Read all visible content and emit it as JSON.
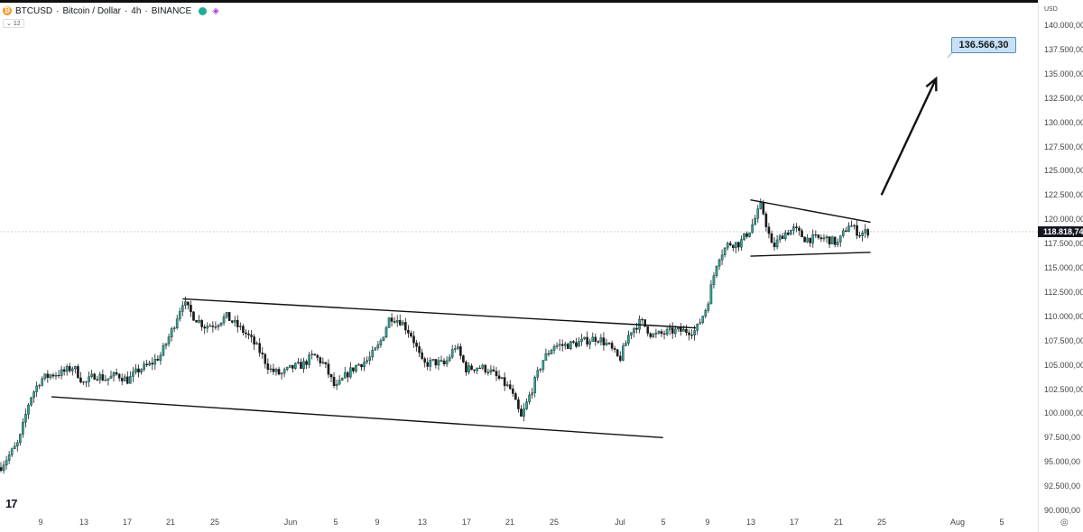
{
  "header": {
    "symbol": "BTCUSD",
    "title": "Bitcoin / Dollar",
    "interval": "4h",
    "exchange": "BINANCE",
    "separator": "·",
    "interval_badge": "12"
  },
  "price_axis": {
    "currency": "USD",
    "ticks": [
      "140.000,00",
      "137.500,00",
      "135.000,00",
      "132.500,00",
      "130.000,00",
      "127.500,00",
      "125.000,00",
      "122.500,00",
      "120.000,00",
      "117.500,00",
      "115.000,00",
      "112.500,00",
      "110.000,00",
      "107.500,00",
      "105.000,00",
      "102.500,00",
      "100.000,00",
      "97.500,00",
      "95.000,00",
      "92.500,00",
      "90.000,00"
    ],
    "last_price": "118.818,74"
  },
  "date_axis": {
    "ticks": [
      "9",
      "13",
      "17",
      "21",
      "25",
      "Jun",
      "5",
      "9",
      "13",
      "17",
      "21",
      "25",
      "Jul",
      "5",
      "9",
      "13",
      "17",
      "21",
      "25",
      "Aug",
      "5"
    ]
  },
  "annotation": {
    "target_label": "136.566,30"
  },
  "logo": "17",
  "icons": {
    "coin": "bitcoin-icon",
    "add": "add-compare-icon",
    "settings": "settings-icon"
  },
  "colors": {
    "up": "#26a69a",
    "candle": "#1a1a1a",
    "grid_line": "#9aa0a8",
    "target_bg": "#c6e0f5"
  },
  "chart_data": {
    "type": "candlestick",
    "symbol": "BTCUSD",
    "timeframe": "4h",
    "y_range": [
      90000,
      140000
    ],
    "last_price": 118818.74,
    "price_path": [
      [
        "2025-05-05",
        94000
      ],
      [
        "2025-05-06",
        95500
      ],
      [
        "2025-05-07",
        97000
      ],
      [
        "2025-05-08",
        101500
      ],
      [
        "2025-05-09",
        103500
      ],
      [
        "2025-05-10",
        104000
      ],
      [
        "2025-05-11",
        104200
      ],
      [
        "2025-05-12",
        104800
      ],
      [
        "2025-05-13",
        103000
      ],
      [
        "2025-05-14",
        104000
      ],
      [
        "2025-05-15",
        103500
      ],
      [
        "2025-05-16",
        104000
      ],
      [
        "2025-05-17",
        103400
      ],
      [
        "2025-05-18",
        104500
      ],
      [
        "2025-05-19",
        105000
      ],
      [
        "2025-05-20",
        106000
      ],
      [
        "2025-05-21",
        108500
      ],
      [
        "2025-05-22",
        111500
      ],
      [
        "2025-05-23",
        110000
      ],
      [
        "2025-05-24",
        109000
      ],
      [
        "2025-05-25",
        109200
      ],
      [
        "2025-05-26",
        110000
      ],
      [
        "2025-05-27",
        109000
      ],
      [
        "2025-05-28",
        108000
      ],
      [
        "2025-05-29",
        106500
      ],
      [
        "2025-05-30",
        104500
      ],
      [
        "2025-05-31",
        104000
      ],
      [
        "2025-06-01",
        104700
      ],
      [
        "2025-06-02",
        105000
      ],
      [
        "2025-06-03",
        106000
      ],
      [
        "2025-06-04",
        105000
      ],
      [
        "2025-06-05",
        102500
      ],
      [
        "2025-06-06",
        104000
      ],
      [
        "2025-06-07",
        105000
      ],
      [
        "2025-06-08",
        105500
      ],
      [
        "2025-06-09",
        107000
      ],
      [
        "2025-06-10",
        110000
      ],
      [
        "2025-06-11",
        109500
      ],
      [
        "2025-06-12",
        108000
      ],
      [
        "2025-06-13",
        105000
      ],
      [
        "2025-06-14",
        105300
      ],
      [
        "2025-06-15",
        105000
      ],
      [
        "2025-06-16",
        107000
      ],
      [
        "2025-06-17",
        104500
      ],
      [
        "2025-06-18",
        104800
      ],
      [
        "2025-06-19",
        104500
      ],
      [
        "2025-06-20",
        103500
      ],
      [
        "2025-06-21",
        102500
      ],
      [
        "2025-06-22",
        99500
      ],
      [
        "2025-06-23",
        102500
      ],
      [
        "2025-06-24",
        105500
      ],
      [
        "2025-06-25",
        107000
      ],
      [
        "2025-06-26",
        107000
      ],
      [
        "2025-06-27",
        107200
      ],
      [
        "2025-06-28",
        107500
      ],
      [
        "2025-06-29",
        107800
      ],
      [
        "2025-06-30",
        107000
      ],
      [
        "2025-07-01",
        105500
      ],
      [
        "2025-07-02",
        108500
      ],
      [
        "2025-07-03",
        109500
      ],
      [
        "2025-07-04",
        108000
      ],
      [
        "2025-07-05",
        108200
      ],
      [
        "2025-07-06",
        108500
      ],
      [
        "2025-07-07",
        108500
      ],
      [
        "2025-07-08",
        108500
      ],
      [
        "2025-07-09",
        111000
      ],
      [
        "2025-07-10",
        116000
      ],
      [
        "2025-07-11",
        117500
      ],
      [
        "2025-07-12",
        117500
      ],
      [
        "2025-07-13",
        119000
      ],
      [
        "2025-07-14",
        121500
      ],
      [
        "2025-07-15",
        117000
      ],
      [
        "2025-07-16",
        118500
      ],
      [
        "2025-07-17",
        119000
      ],
      [
        "2025-07-18",
        118000
      ],
      [
        "2025-07-19",
        118000
      ],
      [
        "2025-07-20",
        118000
      ],
      [
        "2025-07-21",
        117500
      ],
      [
        "2025-07-22",
        119500
      ],
      [
        "2025-07-23",
        118500
      ],
      [
        "2025-07-24",
        118818.74
      ]
    ],
    "trendlines": [
      {
        "name": "channel-upper",
        "from": [
          "2025-05-22",
          111800
        ],
        "to": [
          "2025-07-08",
          108800
        ]
      },
      {
        "name": "channel-lower",
        "from": [
          "2025-05-10",
          101700
        ],
        "to": [
          "2025-07-05",
          97500
        ]
      },
      {
        "name": "pennant-upper",
        "from": [
          "2025-07-13",
          122000
        ],
        "to": [
          "2025-07-24",
          119700
        ]
      },
      {
        "name": "pennant-lower",
        "from": [
          "2025-07-13",
          116200
        ],
        "to": [
          "2025-07-24",
          116600
        ]
      }
    ],
    "projection_arrow": {
      "from": [
        "2025-07-25",
        122500
      ],
      "to": [
        "2025-07-30",
        134500
      ]
    },
    "target_price": 136566.3
  }
}
